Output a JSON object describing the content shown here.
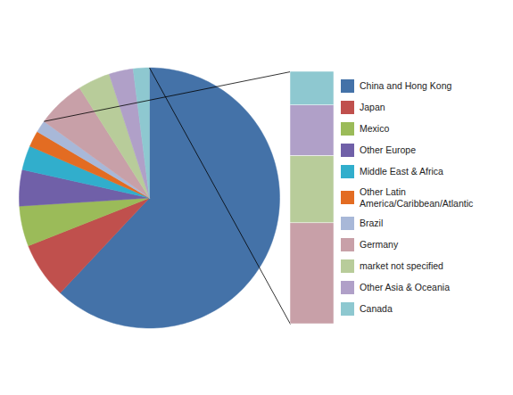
{
  "chart_data": [
    {
      "type": "pie",
      "categories": [
        "China and Hong Kong",
        "Japan",
        "Mexico",
        "Other Europe",
        "Middle East & Africa",
        "Other Latin\nAmerica/Caribbean/Atlantic",
        "Brazil",
        "Germany",
        "market not specified",
        "Other Asia & Oceania",
        "Canada"
      ],
      "values": [
        62,
        7,
        5,
        4.5,
        3,
        2,
        1.5,
        6,
        4,
        3,
        2
      ],
      "colors": [
        "#4472a8",
        "#c0504d",
        "#9bbb59",
        "#7060a8",
        "#31aecc",
        "#e36c22",
        "#a8b8d8",
        "#c8a0a8",
        "#b8cc9a",
        "#b0a0c8",
        "#8ec8d0"
      ],
      "legend": "right"
    },
    {
      "type": "bar",
      "stacked": true,
      "tick_labels": false,
      "categories": [
        null
      ],
      "ylim": [
        0,
        15
      ],
      "series": [
        {
          "name": "Germany",
          "color": "#c8a0a8",
          "values": [
            6
          ]
        },
        {
          "name": "market not specified",
          "color": "#b8cc9a",
          "values": [
            4
          ]
        },
        {
          "name": "Other Asia & Oceania",
          "color": "#b0a0c8",
          "values": [
            3
          ]
        },
        {
          "name": "Canada",
          "color": "#8ec8d0",
          "values": [
            2
          ]
        }
      ]
    }
  ]
}
